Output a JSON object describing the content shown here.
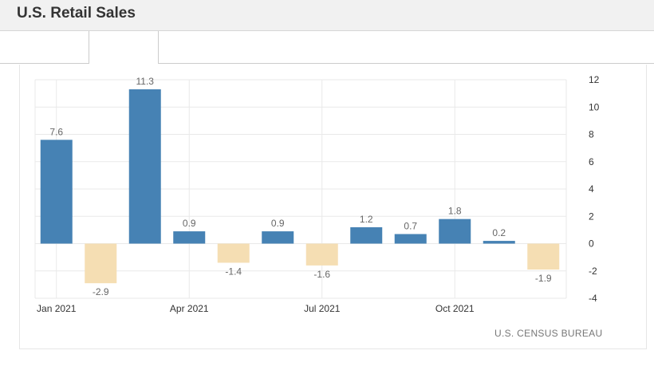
{
  "header": {
    "title": "U.S. Retail Sales"
  },
  "source": "U.S. CENSUS BUREAU",
  "colors": {
    "positive": "#4682b4",
    "negative": "#f5deb3",
    "grid": "#e9e9e9",
    "label": "#666666"
  },
  "chart_data": {
    "type": "bar",
    "title": "",
    "xlabel": "",
    "ylabel": "",
    "categories": [
      "Jan 2021",
      "Feb 2021",
      "Mar 2021",
      "Apr 2021",
      "May 2021",
      "Jun 2021",
      "Jul 2021",
      "Aug 2021",
      "Sep 2021",
      "Oct 2021",
      "Nov 2021",
      "Dec 2021"
    ],
    "values": [
      7.6,
      -2.9,
      11.3,
      0.9,
      -1.4,
      0.9,
      -1.6,
      1.2,
      0.7,
      1.8,
      0.2,
      -1.9
    ],
    "data_labels": [
      "7.6",
      "-2.9",
      "11.3",
      "0.9",
      "-1.4",
      "0.9",
      "-1.6",
      "1.2",
      "0.7",
      "1.8",
      "0.2",
      "-1.9"
    ],
    "x_tick_labels": [
      {
        "index": 0,
        "label": "Jan 2021"
      },
      {
        "index": 3,
        "label": "Apr 2021"
      },
      {
        "index": 6,
        "label": "Jul 2021"
      },
      {
        "index": 9,
        "label": "Oct 2021"
      }
    ],
    "y_ticks": [
      12,
      10,
      8,
      6,
      4,
      2,
      0,
      -2,
      -4
    ],
    "y_tick_labels": [
      "12",
      "10",
      "8",
      "6",
      "4",
      "2",
      "0",
      "-2",
      "-4"
    ],
    "ylim": [
      -4,
      12
    ],
    "y_axis_side": "right",
    "grid": true,
    "legend": "none"
  }
}
